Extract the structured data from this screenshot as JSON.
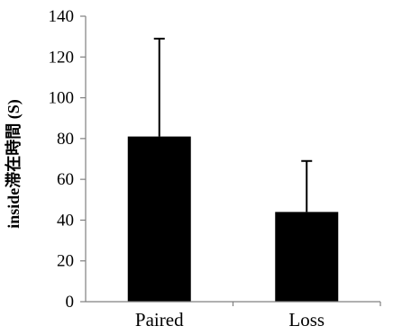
{
  "chart_data": {
    "type": "bar",
    "categories": [
      "Paired",
      "Loss"
    ],
    "values": [
      81,
      44
    ],
    "error_upper": [
      129,
      69
    ],
    "ylabel": "inside滞在時間 (S)",
    "xlabel": "",
    "ylim": [
      0,
      140
    ],
    "yticks": [
      0,
      20,
      40,
      60,
      80,
      100,
      120,
      140
    ],
    "grid": false,
    "bar_color": "#000000",
    "axis_color": "#808080"
  }
}
